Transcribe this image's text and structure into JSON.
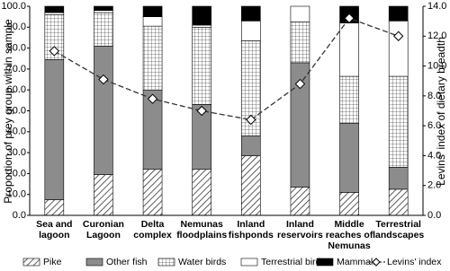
{
  "chart_data": {
    "type": "stacked-bar-line",
    "categories": [
      "Sea and lagoon",
      "Curonian Lagoon",
      "Delta complex",
      "Nemunas floodplains",
      "Inland fishponds",
      "Inland reservoirs",
      "Middle reaches of Nemunas",
      "Terrestrial landscapes"
    ],
    "y_label": "Proportion of prey group within sample",
    "y2_label": "Levins' index of dietary breadth",
    "ylim": [
      0,
      100
    ],
    "yticks": [
      {
        "value": 0,
        "label": "0.0"
      },
      {
        "value": 10,
        "label": "10.0"
      },
      {
        "value": 20,
        "label": "20.0"
      },
      {
        "value": 30,
        "label": "30.0"
      },
      {
        "value": 40,
        "label": "40.0"
      },
      {
        "value": 50,
        "label": "50.0"
      },
      {
        "value": 60,
        "label": "60.0"
      },
      {
        "value": 70,
        "label": "70.0"
      },
      {
        "value": 80,
        "label": "80.0"
      },
      {
        "value": 90,
        "label": "90.0"
      },
      {
        "value": 100,
        "label": "100.0"
      }
    ],
    "y2lim": [
      0,
      14
    ],
    "y2ticks": [
      {
        "value": 0,
        "label": "0.0"
      },
      {
        "value": 2,
        "label": "2.0"
      },
      {
        "value": 4,
        "label": "4.0"
      },
      {
        "value": 6,
        "label": "6.0"
      },
      {
        "value": 8,
        "label": "8.0"
      },
      {
        "value": 10,
        "label": "10.0"
      },
      {
        "value": 12,
        "label": "12.0"
      },
      {
        "value": 14,
        "label": "14.0"
      }
    ],
    "legend": "bottom",
    "series": [
      {
        "name": "Pike",
        "color": "#ffffff",
        "pattern": "diagonal",
        "values": [
          7.5,
          19.5,
          22,
          22,
          28.5,
          13.5,
          11,
          12.5
        ]
      },
      {
        "name": "Other fish",
        "color": "#8c8c8c",
        "values": [
          67,
          61.5,
          38,
          31,
          9.5,
          59.5,
          33,
          10.5
        ]
      },
      {
        "name": "Water birds",
        "color": "#ffffff",
        "pattern": "grid",
        "values": [
          21.5,
          16,
          30.5,
          37,
          45.5,
          19.5,
          22.5,
          43.5
        ]
      },
      {
        "name": "Terrestrial birds",
        "color": "#ffffff",
        "values": [
          1,
          1,
          4.5,
          1,
          9.5,
          7.5,
          25.5,
          26.5
        ]
      },
      {
        "name": "Mammals",
        "color": "#000000",
        "values": [
          3,
          2,
          5,
          9,
          7,
          0,
          8,
          7
        ]
      },
      {
        "name": "Levins' index",
        "color": "#333333",
        "type": "line",
        "axis": "y2",
        "values": [
          11.0,
          9.1,
          7.8,
          7.0,
          6.4,
          8.8,
          13.2,
          12.0
        ]
      }
    ]
  }
}
